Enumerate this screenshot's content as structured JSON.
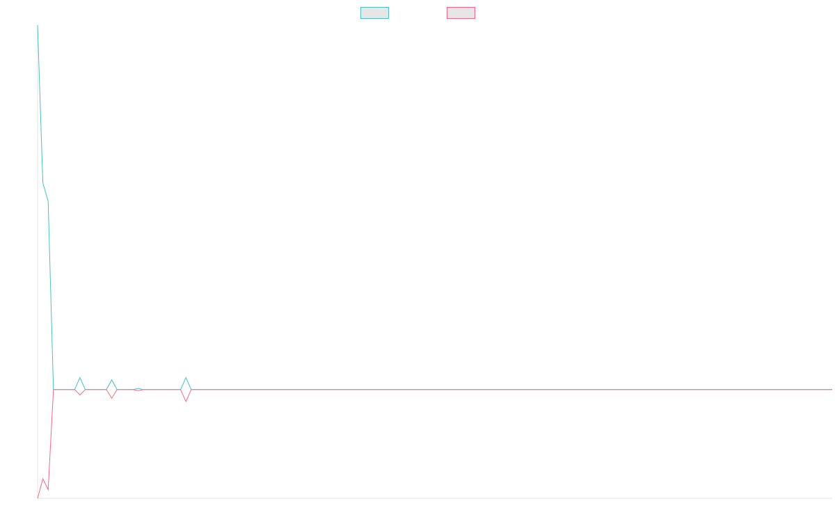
{
  "chart_data": {
    "type": "line",
    "title": "",
    "xlabel": "",
    "ylabel": "",
    "legend": {
      "position": "top-center"
    },
    "grid": false,
    "xlim": [
      0,
      150
    ],
    "ylim": [
      -100,
      335
    ],
    "x": [
      0,
      1,
      2,
      3,
      4,
      5,
      6,
      7,
      8,
      9,
      10,
      11,
      12,
      13,
      14,
      15,
      16,
      17,
      18,
      19,
      20,
      21,
      22,
      23,
      24,
      25,
      26,
      27,
      28,
      29,
      30,
      150
    ],
    "series": [
      {
        "color": "#4bc0c0",
        "swatch_fill": "#e6e6e6",
        "values": [
          335,
          190,
          173,
          0,
          0,
          0,
          0,
          0,
          11,
          0,
          0,
          0,
          0,
          0,
          9,
          0,
          0,
          0,
          0,
          1,
          0,
          0,
          0,
          0,
          0,
          0,
          0,
          0,
          11,
          0,
          0,
          0
        ]
      },
      {
        "color": "#ff6384",
        "swatch_fill": "#e6e6e6",
        "values": [
          -100,
          -82,
          -92,
          0,
          0,
          0,
          0,
          0,
          -5,
          0,
          0,
          0,
          0,
          0,
          -8,
          0,
          0,
          0,
          0,
          -1,
          0,
          0,
          0,
          0,
          0,
          0,
          0,
          0,
          -11,
          0,
          0,
          0
        ]
      }
    ]
  }
}
